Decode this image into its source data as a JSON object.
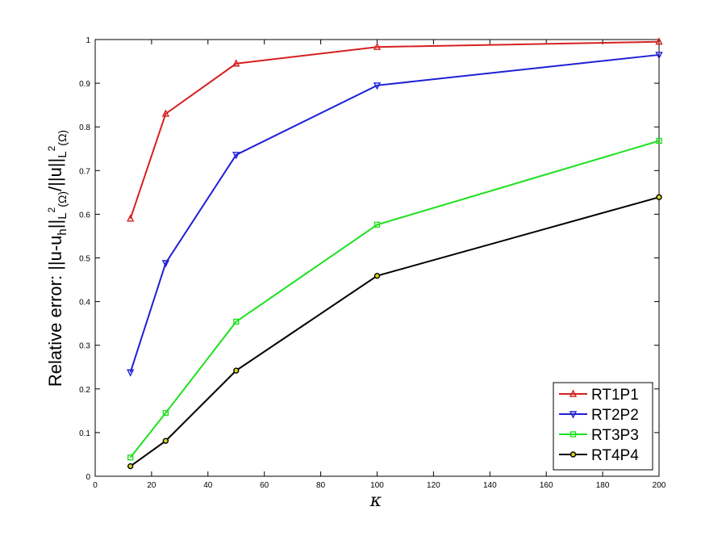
{
  "chart_data": {
    "type": "line",
    "xlabel": "κ",
    "ylabel": {
      "prefix": "Relative error: ||u-u",
      "sub_h": "h",
      "mid1": "||",
      "sub_l2a": "L",
      "sup_a": "2",
      "omega_a": "(Ω)",
      "mid2": "/||u||",
      "sub_l2b": "L",
      "sup_b": "2",
      "omega_b": "(Ω)"
    },
    "xlim": [
      0,
      200
    ],
    "ylim": [
      0,
      1
    ],
    "xticks": [
      "0",
      "20",
      "40",
      "60",
      "80",
      "100",
      "120",
      "140",
      "160",
      "180",
      "200"
    ],
    "yticks": [
      "0",
      "0.1",
      "0.2",
      "0.3",
      "0.4",
      "0.5",
      "0.6",
      "0.7",
      "0.8",
      "0.9",
      "1"
    ],
    "x": [
      12.5,
      25,
      50,
      100,
      200
    ],
    "legend_position": "bottom-right",
    "grid": false,
    "series": [
      {
        "name": "RT1P1",
        "color": "#d62020",
        "marker": "triangle-up",
        "values": [
          0.59,
          0.83,
          0.945,
          0.983,
          0.995
        ]
      },
      {
        "name": "RT2P2",
        "color": "#1f1fd6",
        "marker": "triangle-down",
        "values": [
          0.238,
          0.488,
          0.736,
          0.895,
          0.965
        ]
      },
      {
        "name": "RT3P3",
        "color": "#1ee01e",
        "marker": "square",
        "values": [
          0.043,
          0.145,
          0.354,
          0.576,
          0.768
        ]
      },
      {
        "name": "RT4P4",
        "color": "#000000",
        "marker": "circle",
        "marker_fill": "#d6d61e",
        "values": [
          0.023,
          0.081,
          0.242,
          0.459,
          0.639
        ]
      }
    ]
  }
}
